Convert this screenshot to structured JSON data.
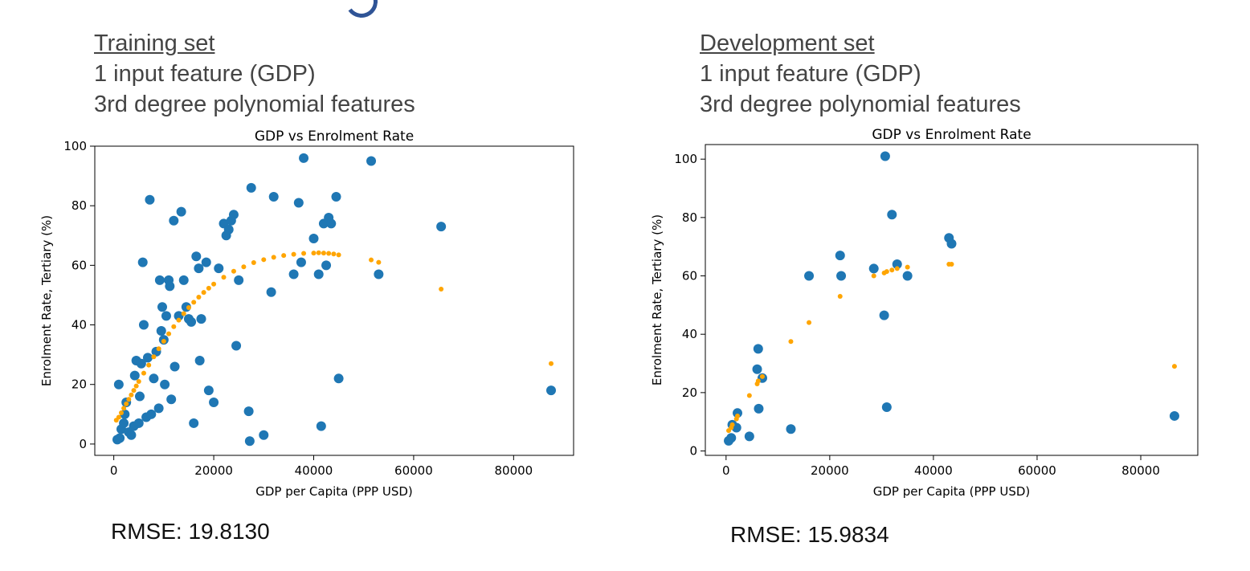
{
  "colors": {
    "actual": "#1f77b4",
    "predicted": "#ffa500",
    "heading_text": "#444444",
    "deco": "#2f5496"
  },
  "panels": [
    {
      "heading": "Training set",
      "line2": "1 input feature (GDP)",
      "line3": "3rd degree polynomial features",
      "rmse": "RMSE: 19.8130"
    },
    {
      "heading": "Development set",
      "line2": "1 input feature (GDP)",
      "line3": "3rd degree polynomial features",
      "rmse": "RMSE: 15.9834"
    }
  ],
  "chart_data": [
    {
      "type": "scatter",
      "title": "GDP vs Enrolment Rate",
      "xlabel": "GDP per Capita (PPP USD)",
      "ylabel": "Enrolment Rate, Tertiary (%)",
      "xlim": [
        -3800,
        92000
      ],
      "ylim": [
        -3.8,
        100
      ],
      "xticks": [
        0,
        20000,
        40000,
        60000,
        80000
      ],
      "yticks": [
        0,
        20,
        40,
        60,
        80,
        100
      ],
      "grid": false,
      "series": [
        {
          "role": "actual",
          "marker_size": "large",
          "points": [
            [
              1000,
              20
            ],
            [
              700,
              1.5
            ],
            [
              1200,
              2
            ],
            [
              1500,
              5
            ],
            [
              2000,
              7
            ],
            [
              2200,
              10
            ],
            [
              2500,
              14
            ],
            [
              3000,
              4
            ],
            [
              3500,
              3
            ],
            [
              4000,
              6
            ],
            [
              4200,
              23
            ],
            [
              4500,
              28
            ],
            [
              5000,
              7
            ],
            [
              5200,
              16
            ],
            [
              5500,
              27
            ],
            [
              5800,
              61
            ],
            [
              6000,
              40
            ],
            [
              6500,
              9
            ],
            [
              6800,
              29
            ],
            [
              7200,
              82
            ],
            [
              7500,
              10
            ],
            [
              8000,
              22
            ],
            [
              8500,
              31
            ],
            [
              9000,
              12
            ],
            [
              9200,
              55
            ],
            [
              9500,
              38
            ],
            [
              9700,
              46
            ],
            [
              10000,
              35
            ],
            [
              10200,
              20
            ],
            [
              10500,
              43
            ],
            [
              11000,
              55
            ],
            [
              11200,
              53
            ],
            [
              11500,
              15
            ],
            [
              12000,
              75
            ],
            [
              12200,
              26
            ],
            [
              13000,
              43
            ],
            [
              13500,
              78
            ],
            [
              14000,
              55
            ],
            [
              14500,
              46
            ],
            [
              15000,
              42
            ],
            [
              15500,
              41
            ],
            [
              16000,
              7
            ],
            [
              16500,
              63
            ],
            [
              17000,
              59
            ],
            [
              17200,
              28
            ],
            [
              17500,
              42
            ],
            [
              18500,
              61
            ],
            [
              19000,
              18
            ],
            [
              20000,
              14
            ],
            [
              21000,
              59
            ],
            [
              22000,
              74
            ],
            [
              22500,
              70
            ],
            [
              23000,
              72
            ],
            [
              23500,
              75
            ],
            [
              24000,
              77
            ],
            [
              24500,
              33
            ],
            [
              25000,
              55
            ],
            [
              27000,
              11
            ],
            [
              27200,
              1
            ],
            [
              27500,
              86
            ],
            [
              30000,
              3
            ],
            [
              31500,
              51
            ],
            [
              32000,
              83
            ],
            [
              36000,
              57
            ],
            [
              37000,
              81
            ],
            [
              37500,
              61
            ],
            [
              38000,
              96
            ],
            [
              40000,
              69
            ],
            [
              41000,
              57
            ],
            [
              41500,
              6
            ],
            [
              42000,
              74
            ],
            [
              42500,
              60
            ],
            [
              43000,
              76
            ],
            [
              43500,
              74
            ],
            [
              44500,
              83
            ],
            [
              45000,
              22
            ],
            [
              51500,
              95
            ],
            [
              53000,
              57
            ],
            [
              65500,
              73
            ],
            [
              87500,
              18
            ]
          ]
        },
        {
          "role": "predicted",
          "marker_size": "small",
          "points": [
            [
              500,
              8
            ],
            [
              1000,
              9
            ],
            [
              1500,
              10.5
            ],
            [
              2000,
              12
            ],
            [
              2500,
              13.5
            ],
            [
              3000,
              15
            ],
            [
              3500,
              16.5
            ],
            [
              4000,
              18
            ],
            [
              4500,
              19.5
            ],
            [
              5000,
              21
            ],
            [
              6000,
              23.8
            ],
            [
              7000,
              26.5
            ],
            [
              8000,
              29.3
            ],
            [
              9000,
              32
            ],
            [
              10000,
              34.5
            ],
            [
              11000,
              37
            ],
            [
              12000,
              39.4
            ],
            [
              13000,
              41.6
            ],
            [
              14000,
              43.8
            ],
            [
              15000,
              45.8
            ],
            [
              16000,
              47.6
            ],
            [
              17000,
              49.3
            ],
            [
              18000,
              50.9
            ],
            [
              19000,
              52.3
            ],
            [
              20000,
              53.7
            ],
            [
              22000,
              56
            ],
            [
              24000,
              58
            ],
            [
              26000,
              59.5
            ],
            [
              28000,
              60.9
            ],
            [
              30000,
              61.9
            ],
            [
              32000,
              62.7
            ],
            [
              34000,
              63.3
            ],
            [
              36000,
              63.7
            ],
            [
              38000,
              64
            ],
            [
              40000,
              64.1
            ],
            [
              41000,
              64.2
            ],
            [
              42000,
              64.1
            ],
            [
              43000,
              64
            ],
            [
              44000,
              63.8
            ],
            [
              45000,
              63.5
            ],
            [
              51500,
              61.8
            ],
            [
              53000,
              61
            ],
            [
              65500,
              52
            ],
            [
              87500,
              27
            ]
          ]
        }
      ]
    },
    {
      "type": "scatter",
      "title": "GDP vs Enrolment Rate",
      "xlabel": "GDP per Capita (PPP USD)",
      "ylabel": "Enrolment Rate, Tertiary (%)",
      "xlim": [
        -4000,
        91000
      ],
      "ylim": [
        -1.5,
        105
      ],
      "xticks": [
        0,
        20000,
        40000,
        60000,
        80000
      ],
      "yticks": [
        0,
        20,
        40,
        60,
        80,
        100
      ],
      "grid": false,
      "series": [
        {
          "role": "actual",
          "marker_size": "large",
          "points": [
            [
              500,
              3.5
            ],
            [
              1000,
              4.5
            ],
            [
              1200,
              9
            ],
            [
              2000,
              8
            ],
            [
              2200,
              13
            ],
            [
              4500,
              5
            ],
            [
              6000,
              28
            ],
            [
              6200,
              35
            ],
            [
              6300,
              14.5
            ],
            [
              7000,
              25
            ],
            [
              12500,
              7.5
            ],
            [
              16000,
              60
            ],
            [
              22000,
              67
            ],
            [
              22200,
              60
            ],
            [
              28500,
              62.5
            ],
            [
              30500,
              46.5
            ],
            [
              30700,
              101
            ],
            [
              31000,
              15
            ],
            [
              32000,
              81
            ],
            [
              33000,
              64
            ],
            [
              35000,
              60
            ],
            [
              43000,
              73
            ],
            [
              43500,
              71
            ],
            [
              86500,
              12
            ]
          ]
        },
        {
          "role": "predicted",
          "marker_size": "small",
          "points": [
            [
              500,
              7
            ],
            [
              1000,
              8
            ],
            [
              1200,
              9
            ],
            [
              2000,
              11
            ],
            [
              2200,
              12
            ],
            [
              4500,
              19
            ],
            [
              6000,
              23
            ],
            [
              6200,
              24
            ],
            [
              7000,
              25.5
            ],
            [
              12500,
              37.5
            ],
            [
              16000,
              44
            ],
            [
              22000,
              53
            ],
            [
              28500,
              60
            ],
            [
              30500,
              61
            ],
            [
              31000,
              61.5
            ],
            [
              32000,
              62
            ],
            [
              33000,
              62.5
            ],
            [
              35000,
              63
            ],
            [
              43000,
              64
            ],
            [
              43500,
              64
            ],
            [
              86500,
              29
            ]
          ]
        }
      ]
    }
  ]
}
